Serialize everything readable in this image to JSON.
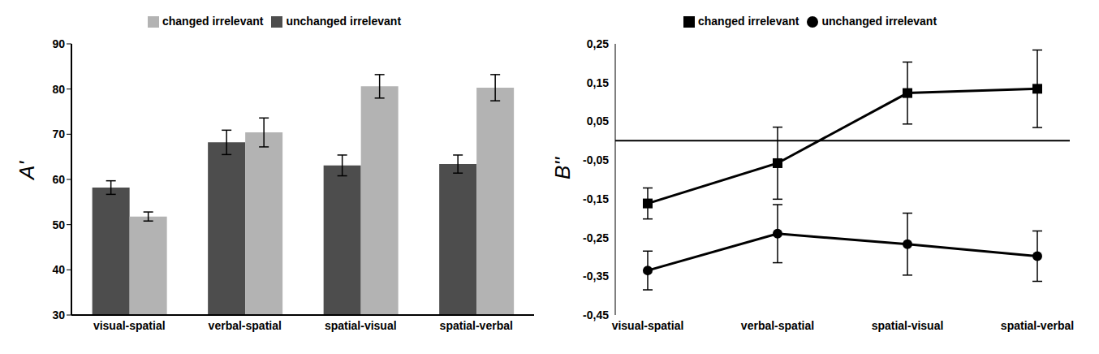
{
  "chart_data": [
    {
      "type": "bar",
      "ylabel": "A'",
      "categories": [
        "visual-spatial",
        "verbal-spatial",
        "spatial-visual",
        "spatial-verbal"
      ],
      "series": [
        {
          "name": "unchanged irrelevant",
          "color": "#4d4d4d",
          "values": [
            58.2,
            68.2,
            63.1,
            63.4
          ],
          "errors": [
            1.5,
            2.7,
            2.3,
            2.0
          ]
        },
        {
          "name": "changed irrelevant",
          "color": "#b3b3b3",
          "values": [
            51.8,
            70.4,
            80.6,
            80.3
          ],
          "errors": [
            1.0,
            3.2,
            2.6,
            2.9
          ]
        }
      ],
      "ylim": [
        30,
        90
      ],
      "yticks": [
        30,
        40,
        50,
        60,
        70,
        80,
        90
      ],
      "legend": "top"
    },
    {
      "type": "line",
      "ylabel": "B''",
      "categories": [
        "visual-spatial",
        "verbal-spatial",
        "spatial-visual",
        "spatial-verbal"
      ],
      "series": [
        {
          "name": "unchanged irrelevant",
          "color": "#000000",
          "marker": "circle",
          "line_style": "solid",
          "values": [
            -0.335,
            -0.24,
            -0.267,
            -0.298
          ],
          "errors": [
            0.05,
            0.075,
            0.08,
            0.065
          ]
        },
        {
          "name": "changed irrelevant",
          "color": "#000000",
          "marker": "square",
          "line_style": "solid",
          "values": [
            -0.162,
            -0.058,
            0.123,
            0.134
          ],
          "errors": [
            0.04,
            0.093,
            0.08,
            0.1
          ]
        }
      ],
      "ylim": [
        -0.45,
        0.25
      ],
      "yticks": [
        {
          "value": -0.45,
          "label": "-0,45"
        },
        {
          "value": -0.35,
          "label": "-0,35"
        },
        {
          "value": -0.25,
          "label": "-0,25"
        },
        {
          "value": -0.15,
          "label": "-0,15"
        },
        {
          "value": -0.05,
          "label": "-0,05"
        },
        {
          "value": 0.05,
          "label": "0,05"
        },
        {
          "value": 0.15,
          "label": "0,15"
        },
        {
          "value": 0.25,
          "label": "0,25"
        }
      ],
      "legend": "top"
    }
  ]
}
